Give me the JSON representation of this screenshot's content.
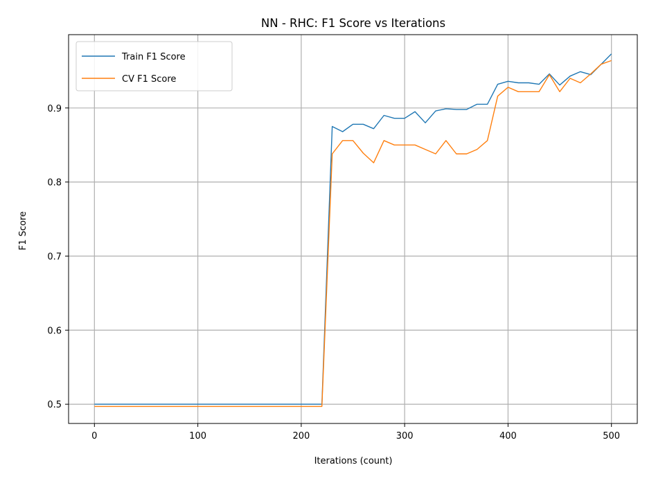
{
  "chart_data": {
    "type": "line",
    "title": "NN - RHC: F1 Score vs Iterations",
    "xlabel": "Iterations (count)",
    "ylabel": "F1 Score",
    "xlim": [
      -25,
      525
    ],
    "ylim": [
      0.474,
      0.999
    ],
    "xticks": [
      0,
      100,
      200,
      300,
      400,
      500
    ],
    "yticks": [
      0.5,
      0.6,
      0.7,
      0.8,
      0.9
    ],
    "grid": true,
    "legend_position": "top-left",
    "x": [
      0,
      10,
      20,
      30,
      40,
      50,
      60,
      70,
      80,
      90,
      100,
      110,
      120,
      130,
      140,
      150,
      160,
      170,
      180,
      190,
      200,
      210,
      220,
      230,
      240,
      250,
      260,
      270,
      280,
      290,
      300,
      310,
      320,
      330,
      340,
      350,
      360,
      370,
      380,
      390,
      400,
      410,
      420,
      430,
      440,
      450,
      460,
      470,
      480,
      490,
      500
    ],
    "series": [
      {
        "name": "Train F1 Score",
        "color": "#1f77b4",
        "values": [
          0.5,
          0.5,
          0.5,
          0.5,
          0.5,
          0.5,
          0.5,
          0.5,
          0.5,
          0.5,
          0.5,
          0.5,
          0.5,
          0.5,
          0.5,
          0.5,
          0.5,
          0.5,
          0.5,
          0.5,
          0.5,
          0.5,
          0.5,
          0.875,
          0.868,
          0.878,
          0.878,
          0.872,
          0.89,
          0.886,
          0.886,
          0.895,
          0.88,
          0.896,
          0.899,
          0.898,
          0.898,
          0.905,
          0.905,
          0.932,
          0.936,
          0.934,
          0.934,
          0.932,
          0.946,
          0.931,
          0.943,
          0.949,
          0.945,
          0.959,
          0.973
        ]
      },
      {
        "name": "CV F1 Score",
        "color": "#ff7f0e",
        "values": [
          0.497,
          0.497,
          0.497,
          0.497,
          0.497,
          0.497,
          0.497,
          0.497,
          0.497,
          0.497,
          0.497,
          0.497,
          0.497,
          0.497,
          0.497,
          0.497,
          0.497,
          0.497,
          0.497,
          0.497,
          0.497,
          0.497,
          0.497,
          0.838,
          0.856,
          0.856,
          0.839,
          0.826,
          0.856,
          0.85,
          0.85,
          0.85,
          0.844,
          0.838,
          0.856,
          0.838,
          0.838,
          0.844,
          0.856,
          0.916,
          0.928,
          0.922,
          0.922,
          0.922,
          0.945,
          0.922,
          0.94,
          0.934,
          0.946,
          0.959,
          0.964
        ]
      }
    ]
  }
}
